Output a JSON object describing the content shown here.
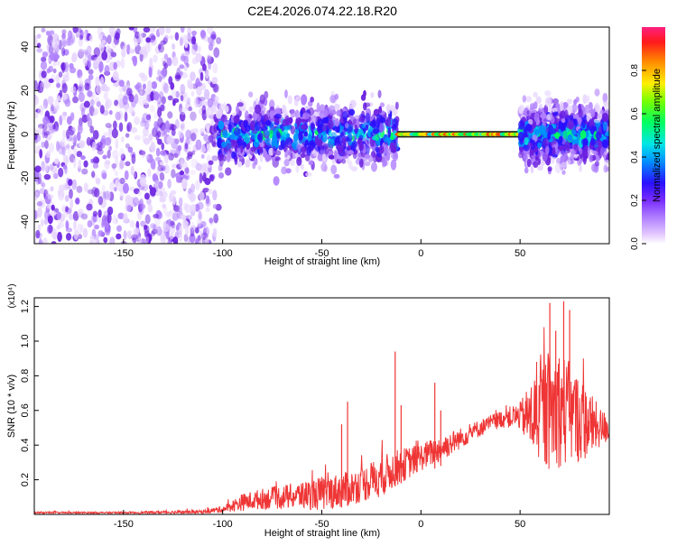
{
  "title": "C2E4.2026.074.22.18.R20",
  "colors": {
    "snr_line": "#ef3535",
    "purple": "#6a1fe0",
    "purple_light": "#c9a8ff",
    "frame": "#000000"
  },
  "chart_data": [
    {
      "id": "spectrogram",
      "type": "heatmap",
      "title": "C2E4.2026.074.22.18.R20",
      "xlabel": "Height of straight line (km)",
      "ylabel": "Frequency (Hz)",
      "xlim": [
        -195,
        95
      ],
      "ylim": [
        -50,
        49
      ],
      "x_ticks": [
        -150,
        -100,
        -50,
        0,
        50
      ],
      "x_tick_labels": [
        "-150",
        "-100",
        "-50",
        "0",
        "50"
      ],
      "y_ticks": [
        -40,
        -20,
        0,
        20,
        40
      ],
      "y_tick_labels": [
        "-40",
        "-20",
        "0",
        "20",
        "40"
      ],
      "colorbar": {
        "label": "Normalized spectral amplitude",
        "range": [
          0,
          1
        ],
        "ticks": [
          0.0,
          0.2,
          0.4,
          0.6,
          0.8
        ],
        "tick_labels": [
          "0.0",
          "0.2",
          "0.4",
          "0.6",
          "0.8"
        ],
        "colormap": "hsv reversed (magenta → red)"
      },
      "regions": [
        {
          "x_range": [
            -195,
            -102
          ],
          "y_range": [
            -50,
            49
          ],
          "amplitude": 0.05,
          "description": "broadband purple noise"
        },
        {
          "x_range": [
            -102,
            -12
          ],
          "y_range": [
            -20,
            12
          ],
          "amplitude": 0.3,
          "description": "clustered energy around 0 Hz"
        },
        {
          "x_range": [
            -12,
            50
          ],
          "y_range": [
            -1.5,
            1.5
          ],
          "amplitude": 1.0,
          "description": "narrow carrier line at 0 Hz"
        },
        {
          "x_range": [
            50,
            95
          ],
          "y_range": [
            -15,
            15
          ],
          "amplitude": 0.3,
          "description": "clustered energy around 0 Hz"
        }
      ],
      "grid": false
    },
    {
      "id": "snr",
      "type": "line",
      "xlabel": "Height of straight line (km)",
      "ylabel": "SNR (10 * v/v)",
      "y_multiplier": "(x10⁴)",
      "xlim": [
        -195,
        95
      ],
      "ylim": [
        0,
        1.25
      ],
      "x_ticks": [
        -150,
        -100,
        -50,
        0,
        50
      ],
      "x_tick_labels": [
        "-150",
        "-100",
        "-50",
        "0",
        "50"
      ],
      "y_ticks": [
        0.2,
        0.4,
        0.6,
        0.8,
        1.0,
        1.2
      ],
      "y_tick_labels": [
        "0.2",
        "0.4",
        "0.6",
        "0.8",
        "1.0",
        "1.2"
      ],
      "series": [
        {
          "x": [
            -195,
            -150,
            -110,
            -100,
            -90,
            -80,
            -70,
            -60,
            -50,
            -40,
            -30,
            -20,
            -10,
            0,
            10,
            20,
            30,
            40,
            50,
            55,
            60,
            65,
            70,
            75,
            80,
            85,
            90,
            95
          ],
          "y": [
            0.01,
            0.01,
            0.015,
            0.03,
            0.07,
            0.09,
            0.1,
            0.11,
            0.12,
            0.14,
            0.17,
            0.22,
            0.28,
            0.33,
            0.38,
            0.44,
            0.5,
            0.55,
            0.57,
            0.56,
            0.58,
            0.6,
            0.62,
            0.58,
            0.55,
            0.52,
            0.5,
            0.5
          ],
          "noise_amplitude": [
            0.005,
            0.005,
            0.01,
            0.02,
            0.05,
            0.06,
            0.07,
            0.08,
            0.1,
            0.1,
            0.1,
            0.12,
            0.1,
            0.08,
            0.08,
            0.06,
            0.05,
            0.05,
            0.08,
            0.2,
            0.3,
            0.35,
            0.35,
            0.3,
            0.25,
            0.2,
            0.12,
            0.08
          ],
          "spikes": [
            {
              "x": -40,
              "y": 0.52
            },
            {
              "x": -37,
              "y": 0.65
            },
            {
              "x": -13,
              "y": 0.94
            },
            {
              "x": -10,
              "y": 0.63
            },
            {
              "x": 7,
              "y": 0.76
            },
            {
              "x": 10,
              "y": 0.6
            },
            {
              "x": 65,
              "y": 1.22
            },
            {
              "x": 68,
              "y": 1.06
            },
            {
              "x": 72,
              "y": 1.23
            },
            {
              "x": 75,
              "y": 1.18
            }
          ]
        }
      ]
    }
  ]
}
